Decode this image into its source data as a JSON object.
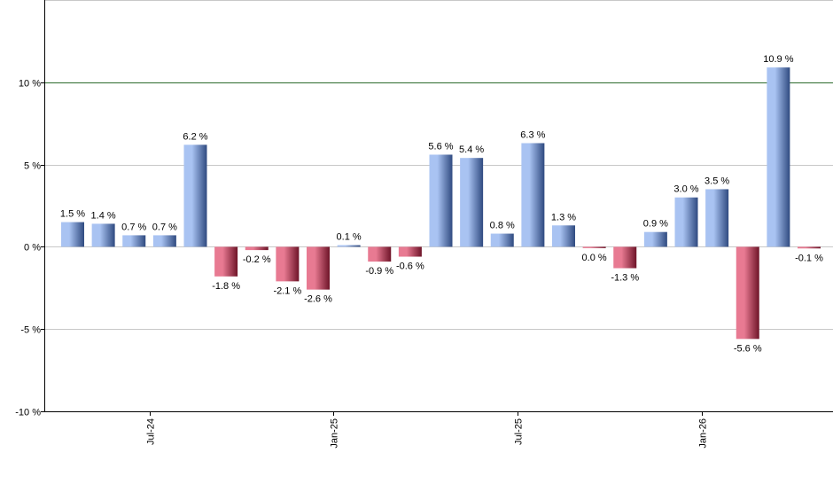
{
  "chart_data": {
    "type": "bar",
    "title": "",
    "xlabel": "",
    "ylabel": "",
    "ylim": [
      -10,
      15
    ],
    "y_ticks": [
      -10,
      -5,
      0,
      5,
      10
    ],
    "y_tick_labels": [
      "-10 %",
      "-5 %",
      "0 %",
      "5 %",
      "10 %"
    ],
    "x_tick_labels": [
      {
        "label": "Jul-24",
        "after_bar_index": 2
      },
      {
        "label": "Jan-25",
        "after_bar_index": 8
      },
      {
        "label": "Jul-25",
        "after_bar_index": 14
      },
      {
        "label": "Jan-26",
        "after_bar_index": 20
      }
    ],
    "values": [
      1.5,
      1.4,
      0.7,
      0.7,
      6.2,
      -1.8,
      -0.2,
      -2.1,
      -2.6,
      0.1,
      -0.9,
      -0.6,
      5.6,
      5.4,
      0.8,
      6.3,
      1.3,
      0.0,
      -1.3,
      0.9,
      3.0,
      3.5,
      -5.6,
      10.9,
      -0.1
    ],
    "value_labels": [
      "1.5 %",
      "1.4 %",
      "0.7 %",
      "0.7 %",
      "6.2 %",
      "-1.8 %",
      "-0.2 %",
      "-2.1 %",
      "-2.6 %",
      "0.1 %",
      "-0.9 %",
      "-0.6 %",
      "5.6 %",
      "5.4 %",
      "0.8 %",
      "6.3 %",
      "1.3 %",
      "0.0 %",
      "-1.3 %",
      "0.9 %",
      "3.0 %",
      "3.5 %",
      "-5.6 %",
      "10.9 %",
      "-0.1 %"
    ],
    "reference_line": {
      "value": 10,
      "color": "#2e6b2e"
    },
    "grid": true,
    "legend": "none",
    "colors": {
      "positive_light": "#a9c3f2",
      "positive_dark": "#2f4a80",
      "negative_light": "#e87a92",
      "negative_dark": "#6e1428",
      "grid": "#c8c8c8",
      "axis": "#000000"
    }
  }
}
